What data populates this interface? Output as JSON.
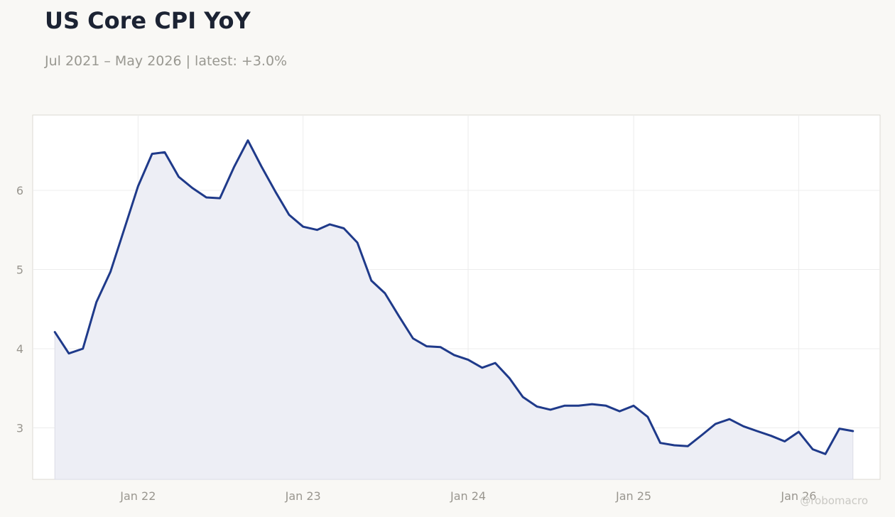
{
  "header": {
    "title": "US Core CPI YoY",
    "subtitle": "Jul 2021 – May 2026 | latest: +3.0%"
  },
  "credit": "@robomacro",
  "colors": {
    "line": "#1f3a8a",
    "area": "#edeef5",
    "background": "#f9f8f5",
    "plot_background": "#ffffff",
    "grid": "#ececec"
  },
  "chart_data": {
    "type": "area",
    "grid": true,
    "legend": "none",
    "ylim": [
      2.35,
      6.95
    ],
    "yticks": [
      3,
      4,
      5,
      6
    ],
    "ytick_labels": [
      "3",
      "4",
      "5",
      "6"
    ],
    "xlim": [
      "2021-05-13",
      "2026-06-30"
    ],
    "xticks": [
      "2022-01-01",
      "2023-01-01",
      "2024-01-01",
      "2025-01-01",
      "2026-01-01"
    ],
    "xtick_labels": [
      "Jan 22",
      "Jan 23",
      "Jan 24",
      "Jan 25",
      "Jan 26"
    ],
    "x": [
      "2021-07-01",
      "2021-08-01",
      "2021-09-01",
      "2021-10-01",
      "2021-11-01",
      "2021-12-01",
      "2022-01-01",
      "2022-02-01",
      "2022-03-01",
      "2022-04-01",
      "2022-05-01",
      "2022-06-01",
      "2022-07-01",
      "2022-08-01",
      "2022-09-01",
      "2022-10-01",
      "2022-11-01",
      "2022-12-01",
      "2023-01-01",
      "2023-02-01",
      "2023-03-01",
      "2023-04-01",
      "2023-05-01",
      "2023-06-01",
      "2023-07-01",
      "2023-08-01",
      "2023-09-01",
      "2023-10-01",
      "2023-11-01",
      "2023-12-01",
      "2024-01-01",
      "2024-02-01",
      "2024-03-01",
      "2024-04-01",
      "2024-05-01",
      "2024-06-01",
      "2024-07-01",
      "2024-08-01",
      "2024-09-01",
      "2024-10-01",
      "2024-11-01",
      "2024-12-01",
      "2025-01-01",
      "2025-02-01",
      "2025-03-01",
      "2025-04-01",
      "2025-05-01",
      "2025-06-01",
      "2025-07-01",
      "2025-08-01",
      "2025-09-01",
      "2025-10-01",
      "2025-11-01",
      "2025-12-01",
      "2026-01-01",
      "2026-02-01",
      "2026-03-01",
      "2026-04-01",
      "2026-05-01"
    ],
    "values": [
      4.21,
      3.94,
      4.0,
      4.59,
      4.97,
      5.5,
      6.05,
      6.46,
      6.48,
      6.17,
      6.03,
      5.91,
      5.9,
      6.29,
      6.63,
      6.3,
      5.98,
      5.69,
      5.54,
      5.5,
      5.57,
      5.52,
      5.34,
      4.86,
      4.7,
      4.41,
      4.13,
      4.03,
      4.02,
      3.92,
      3.86,
      3.76,
      3.82,
      3.63,
      3.39,
      3.27,
      3.23,
      3.28,
      3.28,
      3.3,
      3.28,
      3.21,
      3.28,
      3.14,
      2.81,
      2.78,
      2.77,
      2.91,
      3.05,
      3.11,
      3.02,
      2.96,
      2.9,
      2.83,
      2.95,
      2.73,
      2.67,
      2.99,
      2.96
    ]
  }
}
